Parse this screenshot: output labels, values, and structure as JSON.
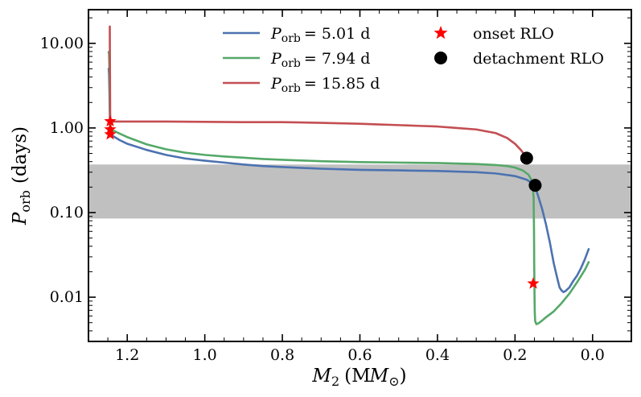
{
  "chart_data": {
    "type": "line",
    "xlabel_symbol": "M",
    "xlabel_sub": "2",
    "xlabel_unit": "(M",
    "xlabel_unit_sub": "⊙",
    "xlabel_close": ")",
    "ylabel_symbol": "P",
    "ylabel_sub": "orb",
    "ylabel_unit": "(days)",
    "x_inverted": true,
    "xlim": [
      1.3,
      -0.1
    ],
    "ylim": [
      0.003,
      25
    ],
    "yscale": "log",
    "x_ticks": [
      1.2,
      1.0,
      0.8,
      0.6,
      0.4,
      0.2,
      0.0
    ],
    "x_tick_labels": [
      "1.2",
      "1.0",
      "0.8",
      "0.6",
      "0.4",
      "0.2",
      "0.0"
    ],
    "y_ticks": [
      0.01,
      0.1,
      1.0,
      10.0
    ],
    "y_tick_labels": [
      "0.01",
      "0.10",
      "1.00",
      "10.00"
    ],
    "shaded_band": {
      "y_range": [
        0.085,
        0.37
      ],
      "color": "#c0c0c0"
    },
    "legend_placement": "top-center",
    "series": [
      {
        "name_symbol": "P",
        "name_sub": "orb",
        "name_value": "= 5.01 d",
        "color": "#4c72b0",
        "x": [
          1.248,
          1.247,
          1.246,
          1.2455,
          1.245,
          1.244,
          1.243,
          1.242,
          1.241,
          1.24,
          1.22,
          1.2,
          1.15,
          1.1,
          1.05,
          1.0,
          0.95,
          0.9,
          0.85,
          0.8,
          0.7,
          0.6,
          0.5,
          0.4,
          0.3,
          0.25,
          0.2,
          0.17,
          0.155,
          0.148,
          0.14,
          0.13,
          0.12,
          0.11,
          0.1,
          0.09,
          0.085,
          0.08,
          0.075,
          0.07,
          0.06,
          0.05,
          0.04,
          0.03,
          0.02,
          0.01
        ],
        "y": [
          5.0,
          4.4,
          2.8,
          2.1,
          1.5,
          1.05,
          0.92,
          0.87,
          0.84,
          0.82,
          0.72,
          0.65,
          0.55,
          0.48,
          0.435,
          0.41,
          0.39,
          0.37,
          0.355,
          0.345,
          0.33,
          0.32,
          0.315,
          0.31,
          0.3,
          0.29,
          0.27,
          0.245,
          0.22,
          0.2,
          0.155,
          0.11,
          0.072,
          0.044,
          0.025,
          0.016,
          0.013,
          0.012,
          0.0115,
          0.0118,
          0.013,
          0.0155,
          0.018,
          0.022,
          0.028,
          0.037
        ]
      },
      {
        "name_symbol": "P",
        "name_sub": "orb",
        "name_value": "= 7.94 d",
        "color": "#55a868",
        "x": [
          1.248,
          1.247,
          1.246,
          1.2455,
          1.245,
          1.244,
          1.243,
          1.242,
          1.241,
          1.24,
          1.22,
          1.2,
          1.15,
          1.1,
          1.05,
          1.0,
          0.95,
          0.9,
          0.85,
          0.8,
          0.7,
          0.6,
          0.5,
          0.4,
          0.35,
          0.3,
          0.25,
          0.22,
          0.2,
          0.18,
          0.165,
          0.155,
          0.152,
          0.151,
          0.1505,
          0.15,
          0.1497,
          0.1495,
          0.149,
          0.148,
          0.145,
          0.14,
          0.13,
          0.12,
          0.1,
          0.08,
          0.06,
          0.04,
          0.02,
          0.01
        ],
        "y": [
          7.9,
          7.5,
          5.0,
          3.0,
          1.8,
          1.25,
          1.05,
          0.98,
          0.96,
          0.95,
          0.86,
          0.78,
          0.64,
          0.56,
          0.51,
          0.48,
          0.46,
          0.445,
          0.43,
          0.42,
          0.405,
          0.395,
          0.39,
          0.385,
          0.38,
          0.375,
          0.365,
          0.355,
          0.34,
          0.315,
          0.28,
          0.23,
          0.15,
          0.06,
          0.025,
          0.015,
          0.011,
          0.009,
          0.0065,
          0.0052,
          0.0048,
          0.0049,
          0.0053,
          0.0058,
          0.0068,
          0.0085,
          0.011,
          0.015,
          0.021,
          0.026
        ]
      },
      {
        "name_symbol": "P",
        "name_sub": "orb",
        "name_value": "= 15.85 d",
        "color": "#c44e52",
        "x": [
          1.245,
          1.245,
          1.244,
          1.243,
          1.242,
          1.241,
          1.24,
          1.22,
          1.2,
          1.1,
          1.0,
          0.9,
          0.8,
          0.7,
          0.6,
          0.55,
          0.5,
          0.45,
          0.4,
          0.35,
          0.3,
          0.25,
          0.22,
          0.2,
          0.185,
          0.175,
          0.17,
          0.168
        ],
        "y": [
          15.8,
          14.0,
          1.2,
          1.2,
          1.19,
          1.19,
          1.19,
          1.19,
          1.19,
          1.19,
          1.18,
          1.17,
          1.17,
          1.15,
          1.12,
          1.1,
          1.08,
          1.06,
          1.04,
          1.0,
          0.96,
          0.87,
          0.76,
          0.65,
          0.55,
          0.48,
          0.43,
          0.38
        ]
      }
    ],
    "markers": [
      {
        "name": "onset RLO",
        "shape": "star",
        "color": "#ff0000",
        "points": [
          [
            1.244,
            1.2
          ],
          [
            1.244,
            0.96
          ],
          [
            1.244,
            0.84
          ],
          [
            0.153,
            0.0145
          ]
        ]
      },
      {
        "name": "detachment RLO",
        "shape": "circle",
        "color": "#000000",
        "points": [
          [
            0.17,
            0.44
          ],
          [
            0.148,
            0.21
          ]
        ]
      }
    ]
  }
}
